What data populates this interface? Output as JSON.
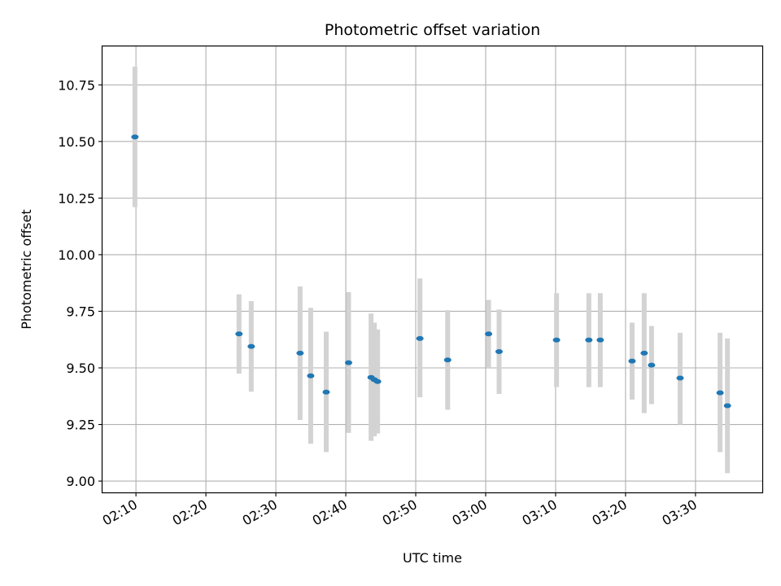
{
  "chart_data": {
    "type": "scatter",
    "title": "Photometric offset variation",
    "xlabel": "UTC time",
    "ylabel": "Photometric offset",
    "x_tick_labels": [
      "02:10",
      "02:20",
      "02:30",
      "02:40",
      "02:50",
      "03:00",
      "03:10",
      "03:20",
      "03:30"
    ],
    "x_tick_minutes": [
      130,
      140,
      150,
      160,
      170,
      180,
      190,
      200,
      210
    ],
    "y_ticks": [
      9.0,
      9.25,
      9.5,
      9.75,
      10.0,
      10.25,
      10.5,
      10.75
    ],
    "y_tick_labels": [
      "9.00",
      "9.25",
      "9.50",
      "9.75",
      "10.00",
      "10.25",
      "10.50",
      "10.75"
    ],
    "xlim": [
      "02:05:13",
      "03:39:33"
    ],
    "ylim": [
      8.95,
      10.92
    ],
    "grid": true,
    "marker_color": "#1f77b4",
    "errorbar_color": "#d3d3d3",
    "points": [
      {
        "time": "02:09:51",
        "value": 10.52,
        "lower": 10.21,
        "upper": 10.83
      },
      {
        "time": "02:24:44",
        "value": 9.65,
        "lower": 9.475,
        "upper": 9.825
      },
      {
        "time": "02:26:29",
        "value": 9.595,
        "lower": 9.395,
        "upper": 9.795
      },
      {
        "time": "02:33:28",
        "value": 9.565,
        "lower": 9.27,
        "upper": 9.86
      },
      {
        "time": "02:34:59",
        "value": 9.465,
        "lower": 9.165,
        "upper": 9.765
      },
      {
        "time": "02:37:12",
        "value": 9.393,
        "lower": 9.128,
        "upper": 9.66
      },
      {
        "time": "02:40:24",
        "value": 9.523,
        "lower": 9.213,
        "upper": 9.835
      },
      {
        "time": "02:43:37",
        "value": 9.458,
        "lower": 9.178,
        "upper": 9.74
      },
      {
        "time": "02:44:05",
        "value": 9.448,
        "lower": 9.198,
        "upper": 9.7
      },
      {
        "time": "02:44:33",
        "value": 9.44,
        "lower": 9.21,
        "upper": 9.67
      },
      {
        "time": "02:50:36",
        "value": 9.63,
        "lower": 9.37,
        "upper": 9.895
      },
      {
        "time": "02:54:34",
        "value": 9.535,
        "lower": 9.315,
        "upper": 9.755
      },
      {
        "time": "03:00:25",
        "value": 9.65,
        "lower": 9.5,
        "upper": 9.8
      },
      {
        "time": "03:01:55",
        "value": 9.572,
        "lower": 9.385,
        "upper": 9.758
      },
      {
        "time": "03:10:08",
        "value": 9.623,
        "lower": 9.415,
        "upper": 9.83
      },
      {
        "time": "03:14:45",
        "value": 9.623,
        "lower": 9.415,
        "upper": 9.83
      },
      {
        "time": "03:16:23",
        "value": 9.623,
        "lower": 9.415,
        "upper": 9.83
      },
      {
        "time": "03:20:56",
        "value": 9.53,
        "lower": 9.36,
        "upper": 9.7
      },
      {
        "time": "03:22:40",
        "value": 9.565,
        "lower": 9.3,
        "upper": 9.83
      },
      {
        "time": "03:23:43",
        "value": 9.512,
        "lower": 9.34,
        "upper": 9.685
      },
      {
        "time": "03:27:48",
        "value": 9.455,
        "lower": 9.25,
        "upper": 9.655
      },
      {
        "time": "03:33:31",
        "value": 9.39,
        "lower": 9.128,
        "upper": 9.655
      },
      {
        "time": "03:34:34",
        "value": 9.333,
        "lower": 9.035,
        "upper": 9.63
      }
    ]
  }
}
